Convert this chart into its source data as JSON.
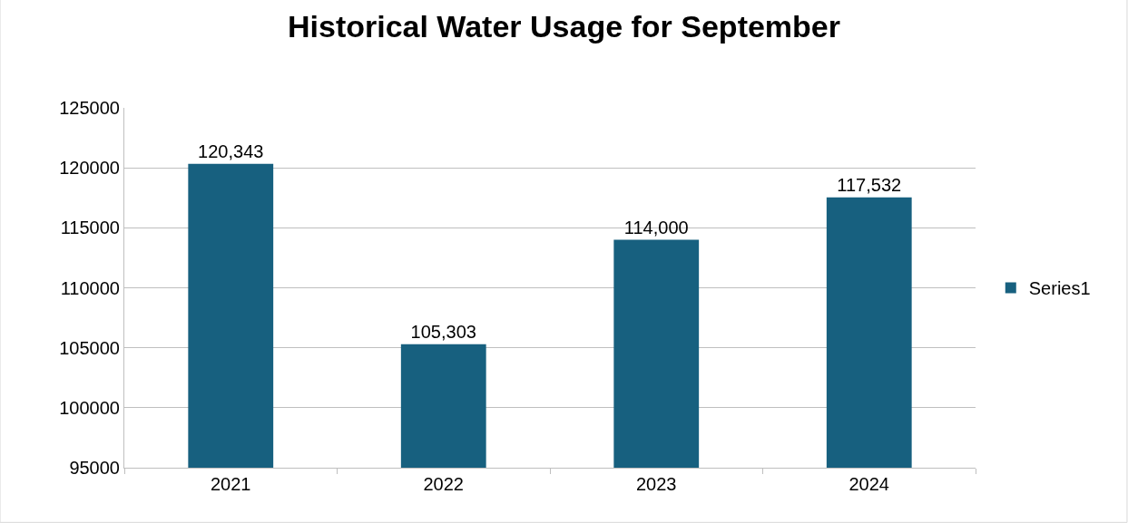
{
  "chart_data": {
    "type": "bar",
    "title": "Historical Water Usage for September",
    "categories": [
      "2021",
      "2022",
      "2023",
      "2024"
    ],
    "series": [
      {
        "name": "Series1",
        "color": "#17607f",
        "values": [
          120343,
          105303,
          114000,
          117532
        ],
        "value_labels": [
          "120,343",
          "105,303",
          "114,000",
          "117,532"
        ]
      }
    ],
    "ylim": [
      95000,
      125000
    ],
    "yticks": [
      95000,
      100000,
      105000,
      110000,
      115000,
      120000,
      125000
    ],
    "grid": "y",
    "legend": "right"
  }
}
